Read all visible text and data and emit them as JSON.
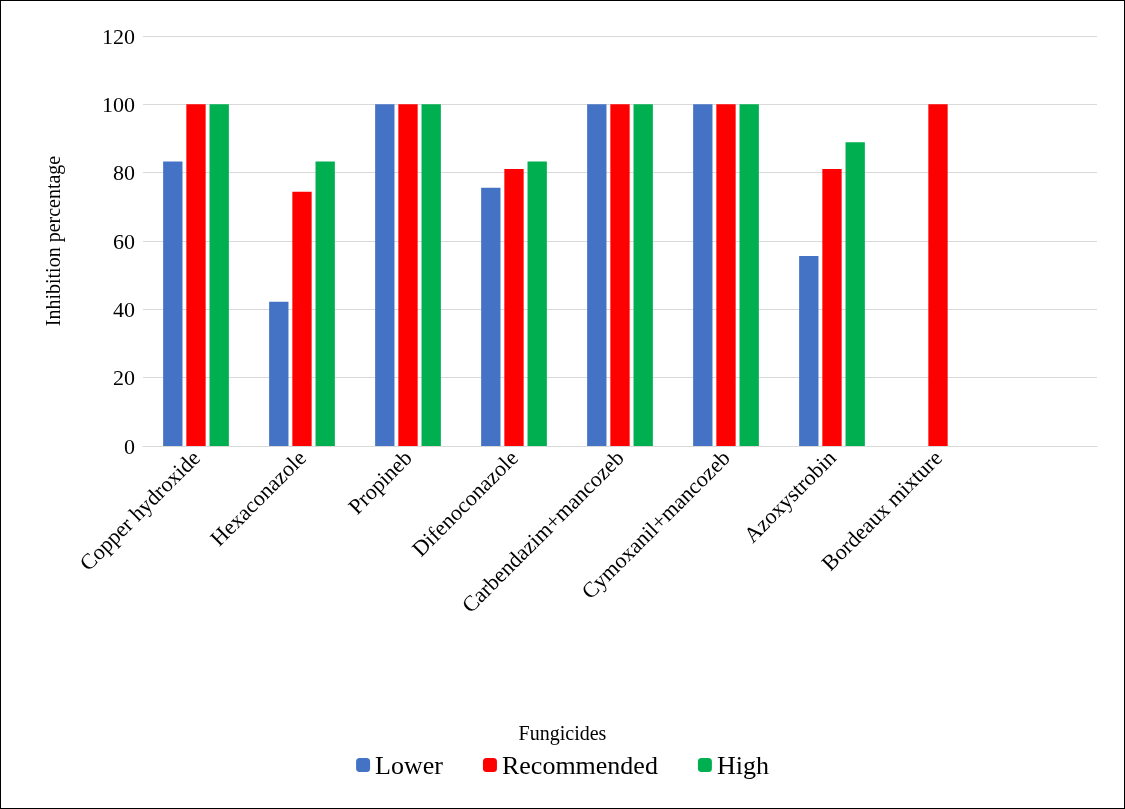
{
  "chart_data": {
    "type": "bar",
    "annotations": [
      "Fungicides"
    ],
    "ylabel": "Inhibition percentage",
    "categories": [
      "Copper hydroxide",
      "Hexaconazole",
      "Propineb",
      "Difenoconazole",
      "Carbendazim+mancozeb",
      "Cymoxanil+mancozeb",
      "Azoxystrobin",
      "Bordeaux mixture",
      null
    ],
    "series": [
      {
        "name": "Lower",
        "color": "#4472c4",
        "values": [
          83.3,
          42.2,
          100,
          75.6,
          100,
          100,
          55.6,
          null,
          null
        ]
      },
      {
        "name": "Recommended",
        "color": "#ff0000",
        "values": [
          100,
          74.4,
          100,
          81.1,
          100,
          100,
          81.1,
          100,
          null
        ]
      },
      {
        "name": "High",
        "color": "#00b050",
        "values": [
          100,
          83.3,
          100,
          83.3,
          100,
          100,
          88.9,
          null,
          null
        ]
      }
    ],
    "ylim": [
      0,
      120
    ],
    "yticks": [
      0,
      20,
      40,
      60,
      80,
      100,
      120
    ],
    "grid": "y",
    "legend": "bottom"
  }
}
